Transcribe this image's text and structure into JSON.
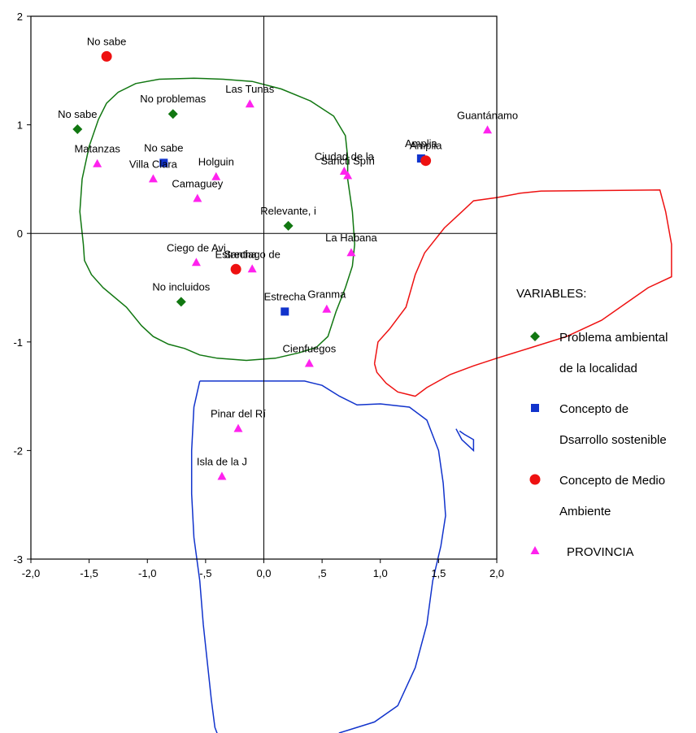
{
  "chart_data": {
    "type": "scatter",
    "title": "",
    "xlabel": "",
    "ylabel": "",
    "xlim": [
      -2.0,
      2.0
    ],
    "ylim": [
      -3,
      2
    ],
    "grid": false,
    "x_ticks": [
      {
        "value": -2.0,
        "label": "-2,0"
      },
      {
        "value": -1.5,
        "label": "-1,5"
      },
      {
        "value": -1.0,
        "label": "-1,0"
      },
      {
        "value": -0.5,
        "label": "-,5"
      },
      {
        "value": 0.0,
        "label": "0,0"
      },
      {
        "value": 0.5,
        "label": ",5"
      },
      {
        "value": 1.0,
        "label": "1,0"
      },
      {
        "value": 1.5,
        "label": "1,5"
      },
      {
        "value": 2.0,
        "label": "2,0"
      }
    ],
    "y_ticks": [
      {
        "value": 2,
        "label": "2"
      },
      {
        "value": 1,
        "label": "1"
      },
      {
        "value": 0,
        "label": "0"
      },
      {
        "value": -1,
        "label": "-1"
      },
      {
        "value": -2,
        "label": "-2"
      },
      {
        "value": -3,
        "label": "-3"
      }
    ],
    "legend": {
      "title": "VARIABLES:",
      "placement": "right"
    },
    "series": [
      {
        "name": "Problema ambiental de la localidad",
        "name_lines": [
          "Problema ambiental",
          "de la localidad"
        ],
        "marker": "diamond",
        "color": "#117711",
        "points": [
          {
            "x": -1.6,
            "y": 0.96,
            "label": "No sabe"
          },
          {
            "x": -0.78,
            "y": 1.1,
            "label": "No problemas"
          },
          {
            "x": 0.21,
            "y": 0.07,
            "label": "Relevante, i"
          },
          {
            "x": -0.71,
            "y": -0.63,
            "label": "No incluidos"
          }
        ]
      },
      {
        "name": "Concepto de Dsarrollo sostenible",
        "name_lines": [
          "Concepto de",
          "Dsarrollo sostenible"
        ],
        "marker": "square",
        "color": "#1133cc",
        "points": [
          {
            "x": -0.86,
            "y": 0.65,
            "label": "No sabe"
          },
          {
            "x": 1.35,
            "y": 0.69,
            "label": "Amplia"
          },
          {
            "x": 0.18,
            "y": -0.72,
            "label": "Estrecha"
          }
        ]
      },
      {
        "name": "Concepto de Medio Ambiente",
        "name_lines": [
          "Concepto de Medio",
          "Ambiente"
        ],
        "marker": "circle",
        "color": "#ee1111",
        "points": [
          {
            "x": -1.35,
            "y": 1.63,
            "label": "No sabe"
          },
          {
            "x": 1.39,
            "y": 0.67,
            "label": "Amplia"
          },
          {
            "x": -0.24,
            "y": -0.33,
            "label": "Estrecha"
          }
        ]
      },
      {
        "name": "PROVINCIA",
        "name_lines": [
          "PROVINCIA"
        ],
        "marker": "triangle",
        "color": "#ff22ee",
        "points": [
          {
            "x": -0.12,
            "y": 1.19,
            "label": "Las Tunas"
          },
          {
            "x": 1.92,
            "y": 0.95,
            "label": "Guantánamo"
          },
          {
            "x": -1.43,
            "y": 0.64,
            "label": "Matanzas"
          },
          {
            "x": -0.95,
            "y": 0.5,
            "label": "Villa Clara"
          },
          {
            "x": -0.41,
            "y": 0.52,
            "label": "Holguin"
          },
          {
            "x": -0.57,
            "y": 0.32,
            "label": "Camaguey"
          },
          {
            "x": 0.69,
            "y": 0.57,
            "label": "Ciudad de la"
          },
          {
            "x": 0.72,
            "y": 0.53,
            "label": "Sancti Spíri"
          },
          {
            "x": 0.75,
            "y": -0.18,
            "label": "La Habana"
          },
          {
            "x": -0.58,
            "y": -0.27,
            "label": "Ciego de Avi"
          },
          {
            "x": -0.1,
            "y": -0.33,
            "label": "Santiago de"
          },
          {
            "x": 0.54,
            "y": -0.7,
            "label": "Granma"
          },
          {
            "x": 0.39,
            "y": -1.2,
            "label": "Cienfuegos"
          },
          {
            "x": -0.22,
            "y": -1.8,
            "label": "Pinar del Rí"
          },
          {
            "x": -0.36,
            "y": -2.24,
            "label": "Isla de la J"
          }
        ]
      }
    ],
    "hand_drawn_outlines": [
      {
        "color": "#117711",
        "points": [
          [
            -1.55,
            -0.1
          ],
          [
            -1.58,
            0.2
          ],
          [
            -1.56,
            0.5
          ],
          [
            -1.5,
            0.8
          ],
          [
            -1.42,
            1.05
          ],
          [
            -1.35,
            1.2
          ],
          [
            -1.25,
            1.3
          ],
          [
            -1.1,
            1.38
          ],
          [
            -0.9,
            1.42
          ],
          [
            -0.6,
            1.43
          ],
          [
            -0.35,
            1.42
          ],
          [
            -0.1,
            1.4
          ],
          [
            0.15,
            1.33
          ],
          [
            0.4,
            1.22
          ],
          [
            0.6,
            1.08
          ],
          [
            0.7,
            0.9
          ],
          [
            0.72,
            0.7
          ],
          [
            0.72,
            0.5
          ],
          [
            0.76,
            0.2
          ],
          [
            0.78,
            -0.1
          ],
          [
            0.76,
            -0.3
          ],
          [
            0.7,
            -0.5
          ],
          [
            0.62,
            -0.72
          ],
          [
            0.55,
            -0.95
          ],
          [
            0.45,
            -1.05
          ],
          [
            0.3,
            -1.1
          ],
          [
            0.1,
            -1.15
          ],
          [
            -0.15,
            -1.17
          ],
          [
            -0.4,
            -1.15
          ],
          [
            -0.55,
            -1.12
          ],
          [
            -0.68,
            -1.06
          ],
          [
            -0.82,
            -1.02
          ],
          [
            -0.95,
            -0.95
          ],
          [
            -1.05,
            -0.85
          ],
          [
            -1.18,
            -0.68
          ],
          [
            -1.38,
            -0.5
          ],
          [
            -1.48,
            -0.38
          ],
          [
            -1.54,
            -0.25
          ],
          [
            -1.55,
            -0.1
          ]
        ]
      },
      {
        "color": "#ee1111",
        "points": [
          [
            0.95,
            -1.2
          ],
          [
            0.98,
            -1.0
          ],
          [
            1.08,
            -0.88
          ],
          [
            1.22,
            -0.68
          ],
          [
            1.3,
            -0.38
          ],
          [
            1.38,
            -0.18
          ],
          [
            1.55,
            0.05
          ],
          [
            1.68,
            0.18
          ],
          [
            1.8,
            0.3
          ],
          [
            2.0,
            0.33
          ],
          [
            2.2,
            0.37
          ],
          [
            2.38,
            0.39
          ],
          [
            3.4,
            0.4
          ],
          [
            3.45,
            0.2
          ],
          [
            3.5,
            -0.1
          ],
          [
            3.5,
            -0.4
          ],
          [
            3.3,
            -0.5
          ],
          [
            3.1,
            -0.65
          ],
          [
            2.9,
            -0.8
          ],
          [
            2.6,
            -0.95
          ],
          [
            2.3,
            -1.05
          ],
          [
            2.0,
            -1.15
          ],
          [
            1.8,
            -1.22
          ],
          [
            1.6,
            -1.3
          ],
          [
            1.4,
            -1.42
          ],
          [
            1.3,
            -1.5
          ],
          [
            1.15,
            -1.46
          ],
          [
            1.05,
            -1.38
          ],
          [
            0.97,
            -1.28
          ],
          [
            0.95,
            -1.2
          ]
        ]
      },
      {
        "color": "#1133cc",
        "points": [
          [
            -0.55,
            -1.36
          ],
          [
            0.35,
            -1.36
          ],
          [
            0.5,
            -1.4
          ],
          [
            0.65,
            -1.5
          ],
          [
            0.8,
            -1.58
          ],
          [
            1.0,
            -1.57
          ],
          [
            1.25,
            -1.6
          ],
          [
            1.4,
            -1.72
          ],
          [
            1.5,
            -2.0
          ],
          [
            1.54,
            -2.3
          ],
          [
            1.56,
            -2.6
          ],
          [
            1.52,
            -2.88
          ],
          [
            1.45,
            -3.2
          ],
          [
            1.4,
            -3.6
          ],
          [
            1.3,
            -4.0
          ],
          [
            1.15,
            -4.35
          ],
          [
            0.95,
            -4.5
          ],
          [
            0.8,
            -4.55
          ],
          [
            0.65,
            -4.6
          ],
          [
            0.55,
            -4.7
          ],
          [
            0.4,
            -4.75
          ],
          [
            0.2,
            -4.85
          ],
          [
            0.05,
            -4.88
          ],
          [
            -0.2,
            -4.86
          ],
          [
            -0.35,
            -4.75
          ],
          [
            -0.42,
            -4.55
          ],
          [
            -0.45,
            -4.3
          ],
          [
            -0.48,
            -4.0
          ],
          [
            -0.52,
            -3.6
          ],
          [
            -0.55,
            -3.2
          ],
          [
            -0.6,
            -2.8
          ],
          [
            -0.62,
            -2.4
          ],
          [
            -0.62,
            -2.0
          ],
          [
            -0.6,
            -1.6
          ],
          [
            -0.55,
            -1.36
          ]
        ]
      },
      {
        "color": "#1133cc",
        "points": [
          [
            1.65,
            -1.8
          ],
          [
            1.7,
            -1.9
          ],
          [
            1.75,
            -1.95
          ],
          [
            1.8,
            -2.0
          ],
          [
            1.8,
            -1.9
          ],
          [
            1.72,
            -1.85
          ],
          [
            1.68,
            -1.82
          ]
        ]
      }
    ]
  }
}
